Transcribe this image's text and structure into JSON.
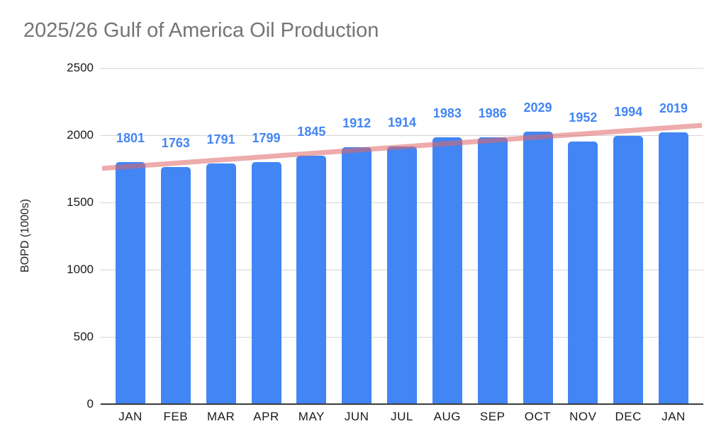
{
  "chart_data": {
    "type": "bar",
    "title": "2025/26 Gulf of America Oil Production",
    "xlabel": "",
    "ylabel": "BOPD (1000s)",
    "categories": [
      "JAN",
      "FEB",
      "MAR",
      "APR",
      "MAY",
      "JUN",
      "JUL",
      "AUG",
      "SEP",
      "OCT",
      "NOV",
      "DEC",
      "JAN"
    ],
    "values": [
      1801,
      1763,
      1791,
      1799,
      1845,
      1912,
      1914,
      1983,
      1986,
      2029,
      1952,
      1994,
      2019
    ],
    "data_labels_shown": true,
    "ylim": [
      0,
      2500
    ],
    "yticks": [
      0,
      500,
      1000,
      1500,
      2000,
      2500
    ],
    "grid": true,
    "legend_position": "none",
    "colors": {
      "bar": "#4285f4",
      "data_label": "#4285f4",
      "trendline": "rgba(224,102,102,0.55)",
      "title_text": "#757575",
      "gridline": "#d5d5d5",
      "axis_line": "#3c3c3c",
      "tick_text": "#1a1a1a",
      "background": "#ffffff"
    },
    "trendline": {
      "type": "linear",
      "start_value": 1753,
      "end_value": 2073
    }
  }
}
